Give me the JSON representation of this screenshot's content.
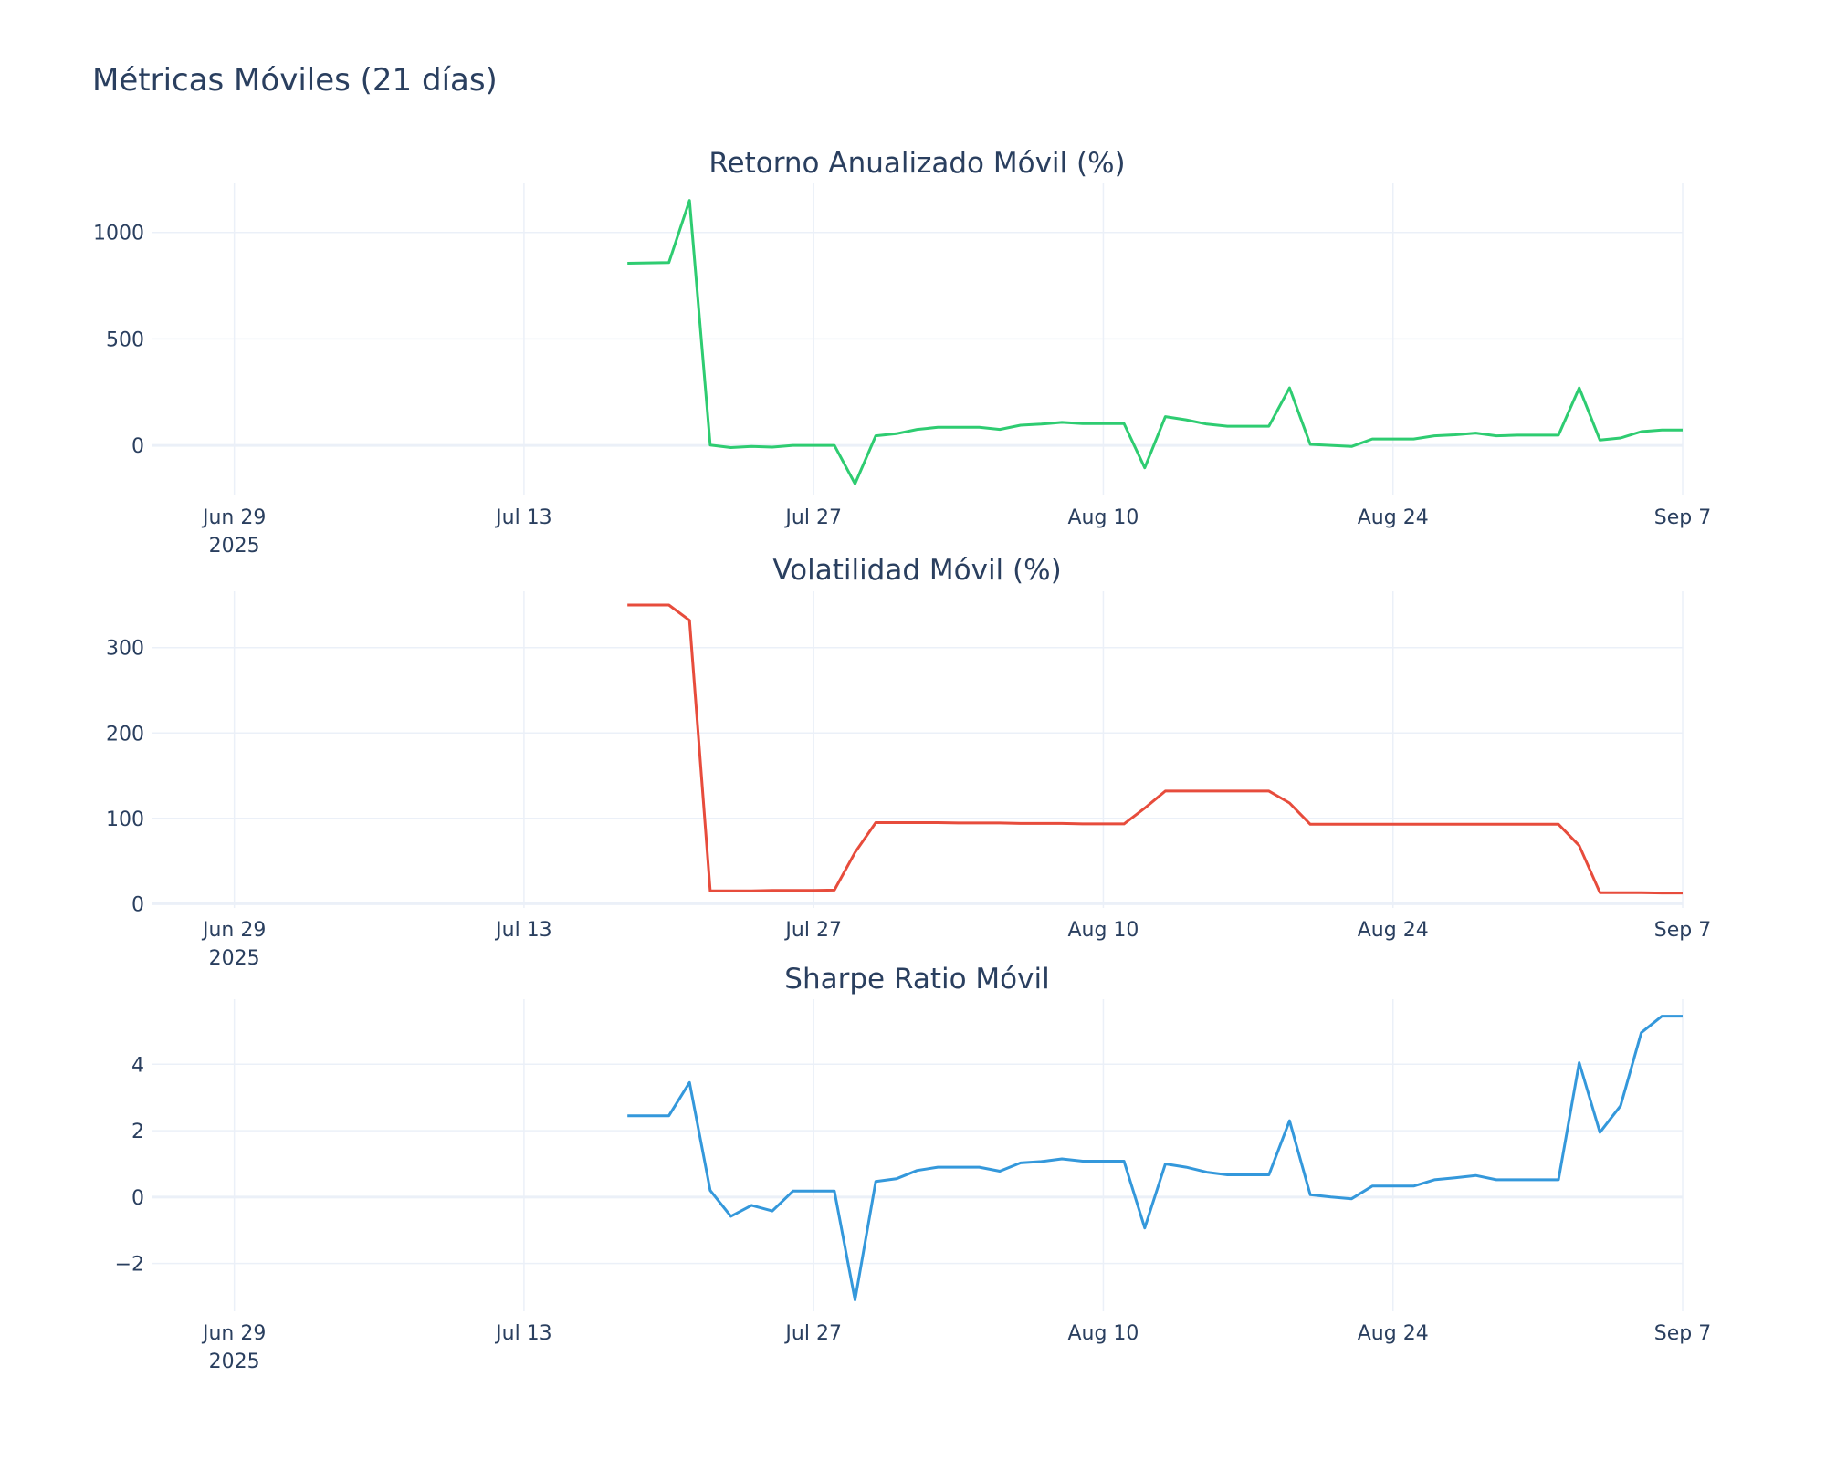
{
  "title": "Métricas Móviles (21 días)",
  "chart_data": [
    {
      "type": "line",
      "title": "Retorno Anualizado Móvil (%)",
      "color": "#2ecc71",
      "grid": true,
      "x": [
        "2025-07-18",
        "2025-07-19",
        "2025-07-20",
        "2025-07-21",
        "2025-07-22",
        "2025-07-23",
        "2025-07-24",
        "2025-07-25",
        "2025-07-26",
        "2025-07-27",
        "2025-07-28",
        "2025-07-29",
        "2025-07-30",
        "2025-07-31",
        "2025-08-01",
        "2025-08-02",
        "2025-08-03",
        "2025-08-04",
        "2025-08-05",
        "2025-08-06",
        "2025-08-07",
        "2025-08-08",
        "2025-08-09",
        "2025-08-10",
        "2025-08-11",
        "2025-08-12",
        "2025-08-13",
        "2025-08-14",
        "2025-08-15",
        "2025-08-16",
        "2025-08-17",
        "2025-08-18",
        "2025-08-19",
        "2025-08-20",
        "2025-08-21",
        "2025-08-22",
        "2025-08-23",
        "2025-08-24",
        "2025-08-25",
        "2025-08-26",
        "2025-08-27",
        "2025-08-28",
        "2025-08-29",
        "2025-08-30",
        "2025-08-31",
        "2025-09-01",
        "2025-09-02",
        "2025-09-03",
        "2025-09-04",
        "2025-09-05",
        "2025-09-06",
        "2025-09-07"
      ],
      "values": [
        855,
        857,
        858,
        1150,
        2,
        -10,
        -5,
        -8,
        0,
        0,
        0,
        -180,
        45,
        55,
        75,
        85,
        85,
        85,
        75,
        95,
        100,
        108,
        102,
        102,
        102,
        -105,
        135,
        120,
        100,
        90,
        90,
        90,
        270,
        5,
        0,
        -5,
        30,
        30,
        30,
        45,
        50,
        58,
        45,
        48,
        48,
        48,
        270,
        25,
        35,
        65,
        72,
        72
      ],
      "xlim": [
        "2025-06-25",
        "2025-09-07"
      ],
      "xticks": [
        {
          "value": "2025-06-29",
          "label": "Jun 29\n2025"
        },
        {
          "value": "2025-07-13",
          "label": "Jul 13"
        },
        {
          "value": "2025-07-27",
          "label": "Jul 27"
        },
        {
          "value": "2025-08-10",
          "label": "Aug 10"
        },
        {
          "value": "2025-08-24",
          "label": "Aug 24"
        },
        {
          "value": "2025-09-07",
          "label": "Sep 7"
        }
      ],
      "ylim": [
        -235,
        1230
      ],
      "yticks": [
        0,
        500,
        1000
      ]
    },
    {
      "type": "line",
      "title": "Volatilidad Móvil (%)",
      "color": "#e74c3c",
      "grid": true,
      "x": [
        "2025-07-18",
        "2025-07-19",
        "2025-07-20",
        "2025-07-21",
        "2025-07-22",
        "2025-07-23",
        "2025-07-24",
        "2025-07-25",
        "2025-07-26",
        "2025-07-27",
        "2025-07-28",
        "2025-07-29",
        "2025-07-30",
        "2025-07-31",
        "2025-08-01",
        "2025-08-02",
        "2025-08-03",
        "2025-08-04",
        "2025-08-05",
        "2025-08-06",
        "2025-08-07",
        "2025-08-08",
        "2025-08-09",
        "2025-08-10",
        "2025-08-11",
        "2025-08-12",
        "2025-08-13",
        "2025-08-14",
        "2025-08-15",
        "2025-08-16",
        "2025-08-17",
        "2025-08-18",
        "2025-08-19",
        "2025-08-20",
        "2025-08-21",
        "2025-08-22",
        "2025-08-23",
        "2025-08-24",
        "2025-08-25",
        "2025-08-26",
        "2025-08-27",
        "2025-08-28",
        "2025-08-29",
        "2025-08-30",
        "2025-08-31",
        "2025-09-01",
        "2025-09-02",
        "2025-09-03",
        "2025-09-04",
        "2025-09-05",
        "2025-09-06",
        "2025-09-07"
      ],
      "values": [
        350,
        350,
        350,
        332,
        15,
        15,
        15,
        15.5,
        15.5,
        15.5,
        16,
        60,
        95,
        95,
        95,
        95,
        94.5,
        94.5,
        94.5,
        94,
        94,
        94,
        93.5,
        93.5,
        93.5,
        112,
        132,
        132,
        132,
        132,
        132,
        132,
        118,
        93,
        93,
        93,
        93,
        93,
        93,
        93,
        93,
        93,
        93,
        93,
        93,
        93,
        68,
        13,
        13,
        13,
        12.5,
        12.5
      ],
      "xlim": [
        "2025-06-25",
        "2025-09-07"
      ],
      "xticks": [
        {
          "value": "2025-06-29",
          "label": "Jun 29\n2025"
        },
        {
          "value": "2025-07-13",
          "label": "Jul 13"
        },
        {
          "value": "2025-07-27",
          "label": "Jul 27"
        },
        {
          "value": "2025-08-10",
          "label": "Aug 10"
        },
        {
          "value": "2025-08-24",
          "label": "Aug 24"
        },
        {
          "value": "2025-09-07",
          "label": "Sep 7"
        }
      ],
      "ylim": [
        -5,
        366
      ],
      "yticks": [
        0,
        100,
        200,
        300
      ]
    },
    {
      "type": "line",
      "title": "Sharpe Ratio Móvil",
      "color": "#3498db",
      "grid": true,
      "x": [
        "2025-07-18",
        "2025-07-19",
        "2025-07-20",
        "2025-07-21",
        "2025-07-22",
        "2025-07-23",
        "2025-07-24",
        "2025-07-25",
        "2025-07-26",
        "2025-07-27",
        "2025-07-28",
        "2025-07-29",
        "2025-07-30",
        "2025-07-31",
        "2025-08-01",
        "2025-08-02",
        "2025-08-03",
        "2025-08-04",
        "2025-08-05",
        "2025-08-06",
        "2025-08-07",
        "2025-08-08",
        "2025-08-09",
        "2025-08-10",
        "2025-08-11",
        "2025-08-12",
        "2025-08-13",
        "2025-08-14",
        "2025-08-15",
        "2025-08-16",
        "2025-08-17",
        "2025-08-18",
        "2025-08-19",
        "2025-08-20",
        "2025-08-21",
        "2025-08-22",
        "2025-08-23",
        "2025-08-24",
        "2025-08-25",
        "2025-08-26",
        "2025-08-27",
        "2025-08-28",
        "2025-08-29",
        "2025-08-30",
        "2025-08-31",
        "2025-09-01",
        "2025-09-02",
        "2025-09-03",
        "2025-09-04",
        "2025-09-05",
        "2025-09-06",
        "2025-09-07"
      ],
      "values": [
        2.45,
        2.45,
        2.45,
        3.45,
        0.2,
        -0.58,
        -0.25,
        -0.42,
        0.18,
        0.18,
        0.18,
        -3.1,
        0.47,
        0.55,
        0.8,
        0.9,
        0.9,
        0.9,
        0.78,
        1.03,
        1.07,
        1.15,
        1.08,
        1.08,
        1.08,
        -0.93,
        1.0,
        0.9,
        0.75,
        0.67,
        0.67,
        0.67,
        2.3,
        0.07,
        0,
        -0.05,
        0.33,
        0.33,
        0.33,
        0.52,
        0.58,
        0.65,
        0.52,
        0.52,
        0.52,
        0.52,
        4.05,
        1.95,
        2.75,
        4.95,
        5.45,
        5.45
      ],
      "xlim": [
        "2025-06-25",
        "2025-09-07"
      ],
      "xticks": [
        {
          "value": "2025-06-29",
          "label": "Jun 29\n2025"
        },
        {
          "value": "2025-07-13",
          "label": "Jul 13"
        },
        {
          "value": "2025-07-27",
          "label": "Jul 27"
        },
        {
          "value": "2025-08-10",
          "label": "Aug 10"
        },
        {
          "value": "2025-08-24",
          "label": "Aug 24"
        },
        {
          "value": "2025-09-07",
          "label": "Sep 7"
        }
      ],
      "ylim": [
        -3.44,
        5.96
      ],
      "yticks": [
        {
          "value": -2,
          "label": "−2"
        },
        0,
        2,
        4
      ]
    }
  ]
}
